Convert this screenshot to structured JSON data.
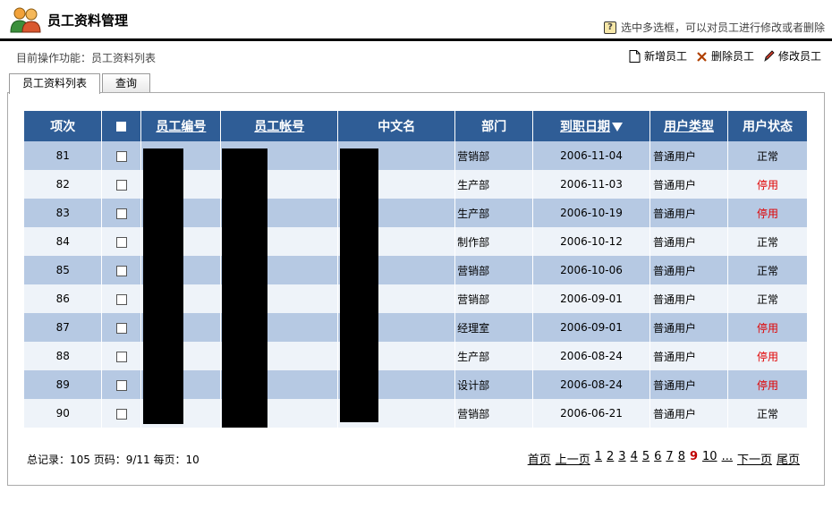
{
  "header": {
    "title": "员工资料管理",
    "hint": "选中多选框，可以对员工进行修改或者删除"
  },
  "subbar": {
    "current_function": "目前操作功能：员工资料列表"
  },
  "actions": {
    "add": "新增员工",
    "delete": "删除员工",
    "edit": "修改员工"
  },
  "tabs": [
    {
      "label": "员工资料列表",
      "active": true
    },
    {
      "label": "查询",
      "active": false
    }
  ],
  "table": {
    "headers": {
      "index": "项次",
      "emp_no": "员工编号",
      "account": "员工帐号",
      "name_cn": "中文名",
      "dept": "部门",
      "hire_date": "到职日期",
      "user_type": "用户类型",
      "status": "用户状态"
    },
    "rows": [
      {
        "index": "81",
        "dept": "营销部",
        "hire_date": "2006-11-04",
        "user_type": "普通用户",
        "status": "正常"
      },
      {
        "index": "82",
        "dept": "生产部",
        "hire_date": "2006-11-03",
        "user_type": "普通用户",
        "status": "停用"
      },
      {
        "index": "83",
        "dept": "生产部",
        "hire_date": "2006-10-19",
        "user_type": "普通用户",
        "status": "停用"
      },
      {
        "index": "84",
        "dept": "制作部",
        "hire_date": "2006-10-12",
        "user_type": "普通用户",
        "status": "正常"
      },
      {
        "index": "85",
        "dept": "营销部",
        "hire_date": "2006-10-06",
        "user_type": "普通用户",
        "status": "正常"
      },
      {
        "index": "86",
        "dept": "营销部",
        "hire_date": "2006-09-01",
        "user_type": "普通用户",
        "status": "正常"
      },
      {
        "index": "87",
        "dept": "经理室",
        "hire_date": "2006-09-01",
        "user_type": "普通用户",
        "status": "停用"
      },
      {
        "index": "88",
        "dept": "生产部",
        "hire_date": "2006-08-24",
        "user_type": "普通用户",
        "status": "停用"
      },
      {
        "index": "89",
        "dept": "设计部",
        "hire_date": "2006-08-24",
        "user_type": "普通用户",
        "status": "停用"
      },
      {
        "index": "90",
        "dept": "营销部",
        "hire_date": "2006-06-21",
        "user_type": "普通用户",
        "status": "正常"
      }
    ]
  },
  "footer": {
    "summary": "总记录：105 页码：9/11 每页：10",
    "pager": {
      "first": "首页",
      "prev": "上一页",
      "pages": [
        "1",
        "2",
        "3",
        "4",
        "5",
        "6",
        "7",
        "8",
        "9",
        "10"
      ],
      "current": "9",
      "ellipsis": "...",
      "next": "下一页",
      "last": "尾页"
    }
  },
  "colors": {
    "header_bg": "#2f5d96",
    "row_odd": "#b6c9e3",
    "row_even": "#eef3f9",
    "status_disabled": "#e00000"
  }
}
